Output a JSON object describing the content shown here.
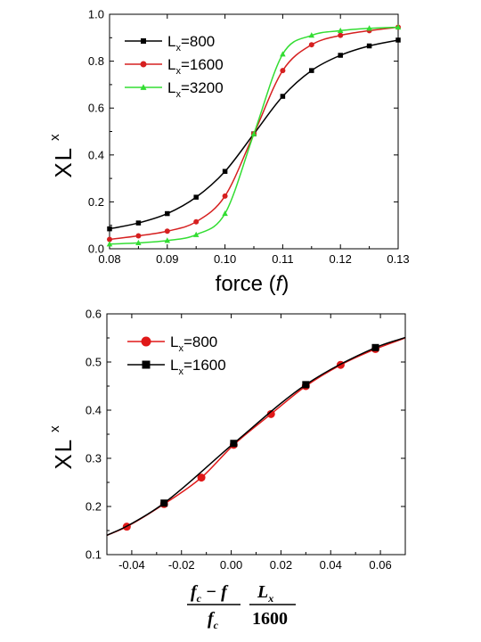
{
  "chart_data": [
    {
      "type": "line",
      "xlabel": "force (f)",
      "xlabel_main": "force (",
      "xlabel_italic": "f",
      "xlabel_close": ")",
      "ylabel_main": "X",
      "ylabel_sub": "L",
      "ylabel_sub2": "x",
      "xlim": [
        0.08,
        0.13
      ],
      "ylim": [
        0.0,
        1.0
      ],
      "xticks": [
        "0.08",
        "0.09",
        "0.10",
        "0.11",
        "0.12",
        "0.13"
      ],
      "yticks": [
        "0.0",
        "0.2",
        "0.4",
        "0.6",
        "0.8",
        "1.0"
      ],
      "legend_position": "top-left",
      "series": [
        {
          "name": "Lx=800",
          "legend_main": "L",
          "legend_sub": "x",
          "legend_rest": "=800",
          "color": "#000000",
          "marker": "square",
          "x": [
            0.08,
            0.085,
            0.09,
            0.095,
            0.1,
            0.105,
            0.11,
            0.115,
            0.12,
            0.125,
            0.13
          ],
          "y": [
            0.085,
            0.11,
            0.15,
            0.22,
            0.33,
            0.49,
            0.65,
            0.76,
            0.825,
            0.865,
            0.89
          ]
        },
        {
          "name": "Lx=1600",
          "legend_main": "L",
          "legend_sub": "x",
          "legend_rest": "=1600",
          "color": "#d62020",
          "marker": "circle",
          "x": [
            0.08,
            0.085,
            0.09,
            0.095,
            0.1,
            0.105,
            0.11,
            0.115,
            0.12,
            0.125,
            0.13
          ],
          "y": [
            0.04,
            0.055,
            0.075,
            0.115,
            0.225,
            0.49,
            0.76,
            0.87,
            0.91,
            0.93,
            0.945
          ]
        },
        {
          "name": "Lx=3200",
          "legend_main": "L",
          "legend_sub": "x",
          "legend_rest": "=3200",
          "color": "#33dd33",
          "marker": "triangle",
          "x": [
            0.08,
            0.085,
            0.09,
            0.095,
            0.1,
            0.105,
            0.11,
            0.115,
            0.12,
            0.125,
            0.13
          ],
          "y": [
            0.02,
            0.025,
            0.035,
            0.06,
            0.15,
            0.49,
            0.83,
            0.91,
            0.93,
            0.94,
            0.945
          ]
        }
      ]
    },
    {
      "type": "line",
      "xlabel_frac1_num": "f",
      "xlabel_frac1_num_sub": "c",
      "xlabel_frac1_num_op": " − f",
      "xlabel_frac1_den": "f",
      "xlabel_frac1_den_sub": "c",
      "xlabel_frac2_num": "L",
      "xlabel_frac2_num_sub": "x",
      "xlabel_frac2_den": "1600",
      "ylabel_main": "X",
      "ylabel_sub": "L",
      "ylabel_sub2": "x",
      "xlim": [
        -0.05,
        0.07
      ],
      "ylim": [
        0.1,
        0.6
      ],
      "xticks": [
        "-0.04",
        "-0.02",
        "0.00",
        "0.02",
        "0.04",
        "0.06"
      ],
      "xtick_values": [
        -0.04,
        -0.02,
        0.0,
        0.02,
        0.04,
        0.06
      ],
      "yticks": [
        "0.1",
        "0.2",
        "0.3",
        "0.4",
        "0.5",
        "0.6"
      ],
      "legend_position": "top-left",
      "series": [
        {
          "name": "Lx=800",
          "legend_main": "L",
          "legend_sub": "x",
          "legend_rest": "=800",
          "color": "#e01818",
          "marker": "circle",
          "x": [
            -0.042,
            -0.027,
            -0.012,
            0.001,
            0.016,
            0.03,
            0.044,
            0.058
          ],
          "y": [
            0.158,
            0.205,
            0.26,
            0.328,
            0.392,
            0.45,
            0.494,
            0.527
          ]
        },
        {
          "name": "Lx=1600",
          "legend_main": "L",
          "legend_sub": "x",
          "legend_rest": "=1600",
          "color": "#000000",
          "marker": "square",
          "x": [
            -0.027,
            0.001,
            0.03,
            0.058
          ],
          "y": [
            0.207,
            0.331,
            0.453,
            0.53
          ]
        }
      ]
    }
  ]
}
